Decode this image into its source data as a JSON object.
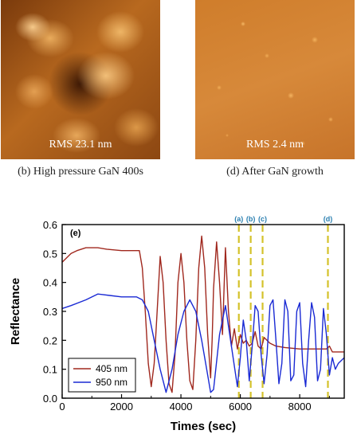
{
  "panels": [
    {
      "rms_label": "RMS 23.1 nm",
      "caption": "(b) High pressure GaN 400s"
    },
    {
      "rms_label": "RMS 2.4 nm",
      "caption": "(d) After GaN growth"
    }
  ],
  "chart_data": {
    "type": "line",
    "panel_label": "(e)",
    "xlabel": "Times (sec)",
    "ylabel": "Reflectance",
    "xlim": [
      0,
      9500
    ],
    "ylim": [
      0,
      0.6
    ],
    "x_ticks": [
      0,
      2000,
      4000,
      6000,
      8000
    ],
    "y_ticks": [
      0.0,
      0.1,
      0.2,
      0.3,
      0.4,
      0.5,
      0.6
    ],
    "legend_position": "bottom-left",
    "markers": [
      {
        "label": "(a)",
        "x": 5950,
        "color": "#d4c22a"
      },
      {
        "label": "(b)",
        "x": 6350,
        "color": "#d4c22a"
      },
      {
        "label": "(c)",
        "x": 6750,
        "color": "#d4c22a"
      },
      {
        "label": "(d)",
        "x": 8950,
        "color": "#d4c22a"
      }
    ],
    "series": [
      {
        "name": "405 nm",
        "color": "#a0281e",
        "x": [
          0,
          100,
          300,
          500,
          800,
          1000,
          1200,
          1500,
          2000,
          2300,
          2600,
          2700,
          2800,
          2900,
          3000,
          3100,
          3200,
          3300,
          3400,
          3500,
          3600,
          3700,
          3800,
          3900,
          4000,
          4100,
          4200,
          4300,
          4400,
          4500,
          4600,
          4700,
          4800,
          4900,
          5000,
          5050,
          5100,
          5200,
          5300,
          5400,
          5500,
          5600,
          5700,
          5800,
          5900,
          6000,
          6100,
          6200,
          6300,
          6400,
          6500,
          6600,
          6700,
          6800,
          7000,
          7200,
          7500,
          8000,
          8500,
          8900,
          9000,
          9100,
          9300,
          9500
        ],
        "y": [
          0.47,
          0.48,
          0.5,
          0.51,
          0.52,
          0.52,
          0.52,
          0.515,
          0.51,
          0.51,
          0.51,
          0.45,
          0.3,
          0.12,
          0.04,
          0.12,
          0.3,
          0.49,
          0.4,
          0.2,
          0.05,
          0.02,
          0.15,
          0.4,
          0.5,
          0.4,
          0.2,
          0.06,
          0.03,
          0.2,
          0.45,
          0.56,
          0.45,
          0.22,
          0.07,
          0.2,
          0.38,
          0.54,
          0.4,
          0.22,
          0.52,
          0.3,
          0.18,
          0.24,
          0.17,
          0.22,
          0.19,
          0.2,
          0.18,
          0.19,
          0.23,
          0.18,
          0.17,
          0.21,
          0.19,
          0.18,
          0.175,
          0.17,
          0.17,
          0.17,
          0.18,
          0.16,
          0.16,
          0.16
        ]
      },
      {
        "name": "950 nm",
        "color": "#1a2ad4",
        "x": [
          0,
          300,
          800,
          1200,
          1600,
          2000,
          2500,
          2700,
          2900,
          3100,
          3300,
          3500,
          3700,
          3900,
          4100,
          4300,
          4500,
          4700,
          4900,
          5000,
          5100,
          5300,
          5500,
          5700,
          5900,
          6000,
          6100,
          6200,
          6300,
          6400,
          6500,
          6600,
          6700,
          6800,
          6900,
          7000,
          7100,
          7200,
          7300,
          7400,
          7500,
          7600,
          7700,
          7800,
          7900,
          8000,
          8100,
          8200,
          8300,
          8400,
          8500,
          8600,
          8700,
          8800,
          8900,
          9000,
          9100,
          9200,
          9300,
          9500
        ],
        "y": [
          0.31,
          0.32,
          0.34,
          0.36,
          0.355,
          0.35,
          0.35,
          0.34,
          0.3,
          0.2,
          0.1,
          0.02,
          0.1,
          0.22,
          0.3,
          0.34,
          0.3,
          0.2,
          0.08,
          0.02,
          0.03,
          0.22,
          0.32,
          0.18,
          0.04,
          0.14,
          0.27,
          0.2,
          0.06,
          0.18,
          0.32,
          0.3,
          0.15,
          0.05,
          0.15,
          0.32,
          0.34,
          0.2,
          0.05,
          0.12,
          0.34,
          0.3,
          0.06,
          0.08,
          0.3,
          0.33,
          0.12,
          0.04,
          0.2,
          0.33,
          0.28,
          0.06,
          0.1,
          0.31,
          0.22,
          0.08,
          0.14,
          0.1,
          0.12,
          0.14
        ]
      }
    ]
  }
}
